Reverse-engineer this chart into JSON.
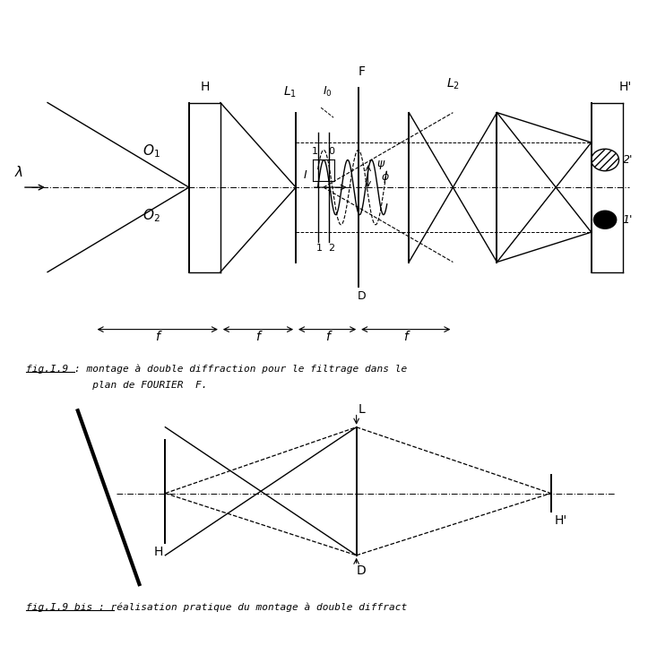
{
  "bg_color": "#ffffff",
  "fig_width": 7.23,
  "fig_height": 7.21,
  "caption1_line1": "fig.I.9 : montage à double diffraction pour le filtrage dans le",
  "caption1_line2": "           plan de FOURIER  F.",
  "caption2": "fig.I.9 bis : réalisation pratique du montage à double diffract"
}
